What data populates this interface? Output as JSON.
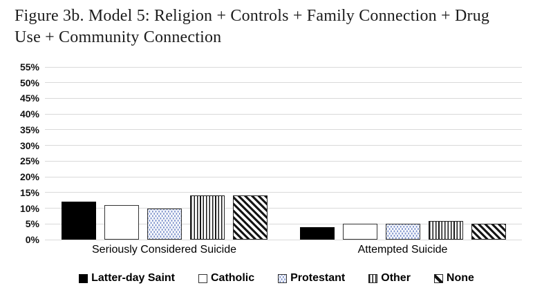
{
  "title": {
    "line1": "Figure 3b. Model 5: Religion + Controls + Family Connection + Drug",
    "line2": "Use + Community Connection"
  },
  "chart_data": {
    "type": "bar",
    "title": "Figure 3b. Model 5: Religion + Controls + Family Connection + Drug Use + Community Connection",
    "categories": [
      "Seriously Considered Suicide",
      "Attempted Suicide"
    ],
    "series": [
      {
        "name": "Latter-day Saint",
        "pattern": "solid-black",
        "values": [
          12,
          4
        ]
      },
      {
        "name": "Catholic",
        "pattern": "plain-white",
        "values": [
          11,
          5
        ]
      },
      {
        "name": "Protestant",
        "pattern": "blue-dots",
        "values": [
          10,
          5
        ]
      },
      {
        "name": "Other",
        "pattern": "vertical-stripes",
        "values": [
          14,
          6
        ]
      },
      {
        "name": "None",
        "pattern": "diagonal-stripes",
        "values": [
          14,
          5
        ]
      }
    ],
    "value_unit": "%",
    "ylim": [
      0,
      55
    ],
    "ytick_step": 5,
    "ytick_labels": [
      "55%",
      "50%",
      "45%",
      "40%",
      "35%",
      "30%",
      "25%",
      "20%",
      "15%",
      "10%",
      "5%",
      "0%"
    ],
    "grid": true,
    "legend_position": "bottom",
    "colors": {
      "gridline": "#d9d9d9",
      "bar_border": "#333333",
      "solid_fill": "#000000",
      "dot_fill": "#7e93cc",
      "text": "#000000"
    }
  }
}
